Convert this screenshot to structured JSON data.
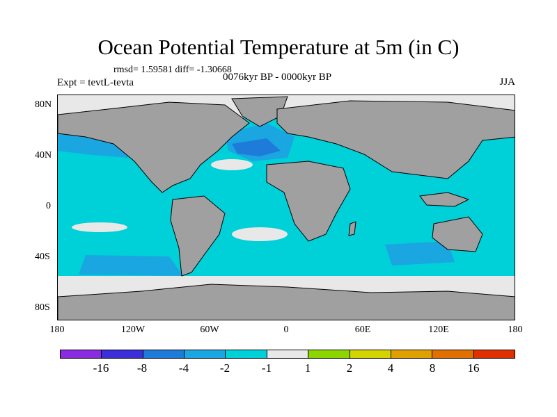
{
  "title": "Ocean Potential Temperature at 5m (in C)",
  "stats": "rmsd= 1.59581 diff= -1.30668",
  "experiment": "Expt = tevtL-tevta",
  "period": "0076kyr BP - 0000kyr BP",
  "season": "JJA",
  "lat_labels": [
    "80N",
    "40N",
    "0",
    "40S",
    "80S"
  ],
  "lon_labels": [
    "180",
    "120W",
    "60W",
    "0",
    "60E",
    "120E",
    "180"
  ],
  "colorbar": {
    "colors": [
      "#8a2be2",
      "#3a2fd8",
      "#1e7bd9",
      "#1aa6e0",
      "#00d0d8",
      "#e8e8e8",
      "#8cd600",
      "#d4d400",
      "#e0a000",
      "#e07000",
      "#e03000"
    ],
    "labels": [
      "-16",
      "-8",
      "-4",
      "-2",
      "-1",
      "1",
      "2",
      "4",
      "8",
      "16"
    ]
  },
  "map_colors": {
    "ocean": "#00d0d8",
    "land": "#a0a0a0",
    "neutral": "#e8e8e8",
    "cool": "#1aa6e0",
    "cold": "#1e7bd9",
    "coldest": "#3a2fd8"
  }
}
